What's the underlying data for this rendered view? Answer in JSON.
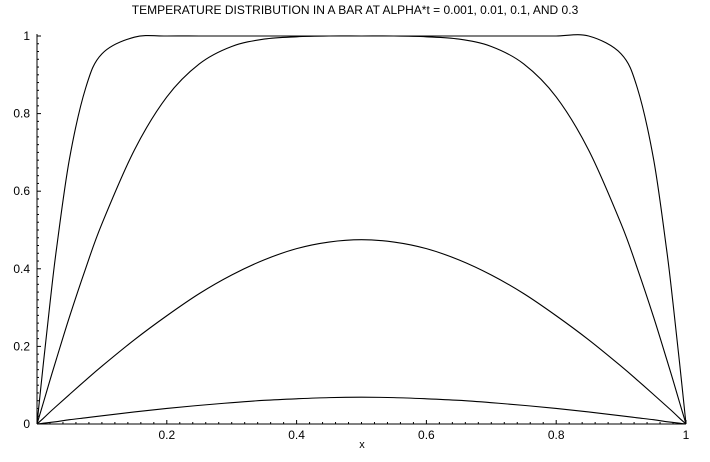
{
  "chart_data": {
    "type": "line",
    "title": "TEMPERATURE DISTRIBUTION IN A BAR AT ALPHA*t = 0.001, 0.01, 0.1, AND 0.3",
    "xlabel": "x",
    "ylabel": "",
    "xlim": [
      0,
      1
    ],
    "ylim": [
      0,
      1
    ],
    "x_ticks": [
      "0.2",
      "0.4",
      "0.6",
      "0.8",
      "1"
    ],
    "y_ticks": [
      "0",
      "0.2",
      "0.4",
      "0.6",
      "0.8",
      "1"
    ],
    "grid": false,
    "legend": "none",
    "line_color": "#000000",
    "x": [
      0,
      0.01,
      0.02,
      0.03,
      0.05,
      0.075,
      0.1,
      0.15,
      0.2,
      0.25,
      0.3,
      0.35,
      0.4,
      0.45,
      0.5,
      0.55,
      0.6,
      0.65,
      0.7,
      0.75,
      0.8,
      0.85,
      0.9,
      0.925,
      0.95,
      0.97,
      0.98,
      0.99,
      1
    ],
    "series": [
      {
        "values": [
          0,
          0.159,
          0.311,
          0.451,
          0.683,
          0.866,
          0.954,
          0.997,
          1.0,
          1.0,
          1.0,
          1.0,
          1.0,
          1.0,
          1.0,
          1.0,
          1.0,
          1.0,
          1.0,
          1.0,
          1.0,
          1.0,
          0.954,
          0.866,
          0.683,
          0.451,
          0.311,
          0.159,
          0
        ]
      },
      {
        "values": [
          0,
          0.056,
          0.113,
          0.168,
          0.276,
          0.401,
          0.516,
          0.706,
          0.843,
          0.928,
          0.973,
          0.992,
          0.998,
          1.0,
          1.0,
          1.0,
          0.998,
          0.992,
          0.973,
          0.928,
          0.843,
          0.706,
          0.516,
          0.401,
          0.276,
          0.168,
          0.113,
          0.056,
          0
        ]
      },
      {
        "values": [
          0,
          0.015,
          0.031,
          0.046,
          0.076,
          0.113,
          0.149,
          0.217,
          0.279,
          0.336,
          0.384,
          0.423,
          0.452,
          0.469,
          0.475,
          0.469,
          0.452,
          0.423,
          0.384,
          0.336,
          0.279,
          0.217,
          0.149,
          0.113,
          0.076,
          0.046,
          0.031,
          0.015,
          0
        ]
      },
      {
        "values": [
          0,
          0.002,
          0.004,
          0.006,
          0.011,
          0.016,
          0.021,
          0.031,
          0.04,
          0.048,
          0.055,
          0.061,
          0.065,
          0.068,
          0.069,
          0.068,
          0.065,
          0.061,
          0.055,
          0.048,
          0.04,
          0.031,
          0.021,
          0.016,
          0.011,
          0.006,
          0.004,
          0.002,
          0
        ]
      }
    ]
  }
}
